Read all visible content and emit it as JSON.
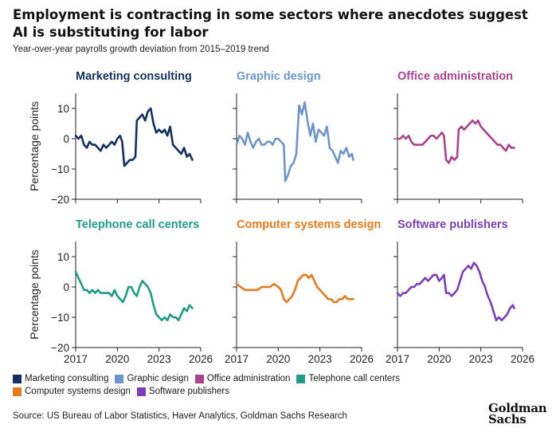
{
  "title": "Employment is contracting in some sectors where anecdotes suggest AI is substituting for labor",
  "subtitle": "Year-over-year payrolls growth deviation from 2015–2019 trend",
  "source": "Source: US Bureau of Labor Statistics, Haver Analytics, Goldman Sachs Research",
  "logo": {
    "line1": "Goldman",
    "line2": "Sachs"
  },
  "chart_data": {
    "type": "line",
    "layout": "small-multiples 2x3",
    "ylabel": "Percentage points",
    "ylim": [
      -20,
      15
    ],
    "yticks": [
      10,
      0,
      -10,
      -20
    ],
    "xlim": [
      2017,
      2026
    ],
    "xticks": [
      2017,
      2020,
      2023,
      2026
    ],
    "grid": false,
    "legend_position": "bottom",
    "series": [
      {
        "name": "Marketing consulting",
        "color": "#14305e",
        "panel_title": "Marketing consulting",
        "x": [
          2017,
          2017.2,
          2017.4,
          2017.6,
          2017.8,
          2018,
          2018.2,
          2018.4,
          2018.6,
          2018.8,
          2019,
          2019.2,
          2019.4,
          2019.6,
          2019.8,
          2020,
          2020.2,
          2020.35,
          2020.5,
          2020.7,
          2020.9,
          2021.1,
          2021.3,
          2021.4,
          2021.6,
          2021.8,
          2022,
          2022.2,
          2022.4,
          2022.6,
          2022.8,
          2023,
          2023.2,
          2023.4,
          2023.6,
          2023.8,
          2024,
          2024.2,
          2024.4,
          2024.6,
          2024.8,
          2025,
          2025.2,
          2025.4
        ],
        "y": [
          1,
          0,
          1,
          -2,
          -3,
          -1,
          -2,
          -2,
          -3,
          -4,
          -2,
          -3,
          -2,
          -1,
          -2,
          0,
          1,
          -1,
          -9,
          -8,
          -7,
          -7,
          -6,
          6,
          7,
          8,
          6,
          9,
          10,
          5,
          2,
          3,
          2,
          3,
          1,
          4,
          -2,
          -3,
          -4,
          -5,
          -3,
          -6,
          -5,
          -7
        ]
      },
      {
        "name": "Graphic design",
        "color": "#6f96c8",
        "panel_title": "Graphic design",
        "x": [
          2017,
          2017.2,
          2017.4,
          2017.6,
          2017.8,
          2018,
          2018.2,
          2018.4,
          2018.6,
          2018.8,
          2019,
          2019.2,
          2019.4,
          2019.6,
          2019.8,
          2020,
          2020.2,
          2020.4,
          2020.5,
          2020.7,
          2020.9,
          2021.1,
          2021.3,
          2021.5,
          2021.7,
          2021.9,
          2022.1,
          2022.3,
          2022.5,
          2022.7,
          2022.9,
          2023.1,
          2023.3,
          2023.5,
          2023.7,
          2023.9,
          2024.1,
          2024.3,
          2024.5,
          2024.7,
          2024.9,
          2025.1,
          2025.3,
          2025.4
        ],
        "y": [
          -2,
          1,
          0,
          -2,
          2,
          -1,
          -3,
          -1,
          0,
          -2,
          -2,
          -1,
          -1,
          -2,
          0,
          0,
          -1,
          -2,
          -14,
          -12,
          -9,
          -8,
          -5,
          11,
          8,
          12,
          6,
          1,
          5,
          -1,
          3,
          2,
          1,
          4,
          -3,
          -4,
          -6,
          -8,
          -4,
          -5,
          -3,
          -6,
          -5,
          -7
        ]
      },
      {
        "name": "Office administration",
        "color": "#a8448e",
        "panel_title": "Office administration",
        "x": [
          2017,
          2017.2,
          2017.4,
          2017.6,
          2017.8,
          2018,
          2018.2,
          2018.4,
          2018.6,
          2018.8,
          2019,
          2019.2,
          2019.4,
          2019.6,
          2019.8,
          2020,
          2020.2,
          2020.35,
          2020.5,
          2020.7,
          2020.9,
          2021.1,
          2021.3,
          2021.4,
          2021.6,
          2021.8,
          2022,
          2022.2,
          2022.4,
          2022.6,
          2022.8,
          2023,
          2023.2,
          2023.4,
          2023.6,
          2023.8,
          2024,
          2024.2,
          2024.4,
          2024.6,
          2024.8,
          2025,
          2025.2,
          2025.4
        ],
        "y": [
          0,
          0,
          1,
          0,
          1,
          -1,
          -2,
          -2,
          -2,
          -2,
          -1,
          0,
          1,
          1,
          0,
          1,
          2,
          1,
          -7,
          -8,
          -6,
          -7,
          -6,
          3,
          4,
          3,
          4,
          5,
          6,
          5,
          6,
          4,
          3,
          2,
          1,
          0,
          -1,
          -2,
          -2,
          -3,
          -4,
          -2,
          -3,
          -3
        ]
      },
      {
        "name": "Telephone call centers",
        "color": "#1f9b86",
        "panel_title": "Telephone call centers",
        "x": [
          2017,
          2017.2,
          2017.4,
          2017.6,
          2017.8,
          2018,
          2018.2,
          2018.4,
          2018.6,
          2018.8,
          2019,
          2019.2,
          2019.4,
          2019.6,
          2019.8,
          2020,
          2020.2,
          2020.4,
          2020.6,
          2020.8,
          2021,
          2021.2,
          2021.4,
          2021.6,
          2021.8,
          2022,
          2022.2,
          2022.4,
          2022.6,
          2022.8,
          2023,
          2023.2,
          2023.4,
          2023.6,
          2023.8,
          2024,
          2024.2,
          2024.4,
          2024.6,
          2024.8,
          2025,
          2025.2,
          2025.4
        ],
        "y": [
          5,
          3,
          1,
          -1,
          -1,
          -2,
          -1,
          -2,
          -1,
          -2,
          -2,
          -2,
          -2,
          -3,
          -1,
          -3,
          -4,
          -5,
          -3,
          0,
          0,
          -2,
          -3,
          0,
          2,
          1,
          0,
          -2,
          -6,
          -9,
          -10,
          -11,
          -10,
          -11,
          -9,
          -10,
          -10,
          -11,
          -9,
          -7,
          -8,
          -6,
          -7
        ]
      },
      {
        "name": "Computer systems design",
        "color": "#e07b20",
        "panel_title": "Computer systems design",
        "x": [
          2017,
          2017.3,
          2017.6,
          2017.9,
          2018.2,
          2018.5,
          2018.8,
          2019.1,
          2019.4,
          2019.7,
          2020,
          2020.2,
          2020.4,
          2020.6,
          2020.8,
          2021,
          2021.2,
          2021.4,
          2021.6,
          2021.8,
          2022,
          2022.2,
          2022.4,
          2022.6,
          2022.8,
          2023,
          2023.2,
          2023.4,
          2023.6,
          2023.8,
          2024,
          2024.2,
          2024.4,
          2024.6,
          2024.8,
          2025,
          2025.2,
          2025.4
        ],
        "y": [
          1,
          0,
          -1,
          -1,
          -1,
          -1,
          0,
          0,
          0,
          1,
          0,
          -1,
          -4,
          -5,
          -4,
          -3,
          -1,
          2,
          3,
          4,
          4,
          3,
          4,
          2,
          0,
          -1,
          -2,
          -3,
          -4,
          -4,
          -5,
          -5,
          -4,
          -4,
          -3,
          -4,
          -4,
          -4
        ]
      },
      {
        "name": "Software publishers",
        "color": "#7b3fb5",
        "panel_title": "Software publishers",
        "x": [
          2017,
          2017.2,
          2017.4,
          2017.6,
          2017.8,
          2018,
          2018.2,
          2018.4,
          2018.6,
          2018.8,
          2019,
          2019.2,
          2019.4,
          2019.6,
          2019.8,
          2020,
          2020.2,
          2020.35,
          2020.5,
          2020.7,
          2020.9,
          2021.1,
          2021.3,
          2021.5,
          2021.7,
          2021.9,
          2022.1,
          2022.3,
          2022.5,
          2022.7,
          2022.9,
          2023.1,
          2023.3,
          2023.5,
          2023.7,
          2023.9,
          2024.1,
          2024.3,
          2024.5,
          2024.7,
          2024.9,
          2025.1,
          2025.3,
          2025.4
        ],
        "y": [
          -2,
          -3,
          -2,
          -2,
          -1,
          0,
          0,
          1,
          1,
          2,
          3,
          2,
          3,
          4,
          4,
          2,
          3,
          4,
          -2,
          -2,
          -3,
          -2,
          -1,
          2,
          5,
          6,
          7,
          6,
          8,
          7,
          5,
          2,
          0,
          -3,
          -5,
          -8,
          -11,
          -10,
          -11,
          -10,
          -9,
          -7,
          -6,
          -7
        ]
      }
    ]
  }
}
